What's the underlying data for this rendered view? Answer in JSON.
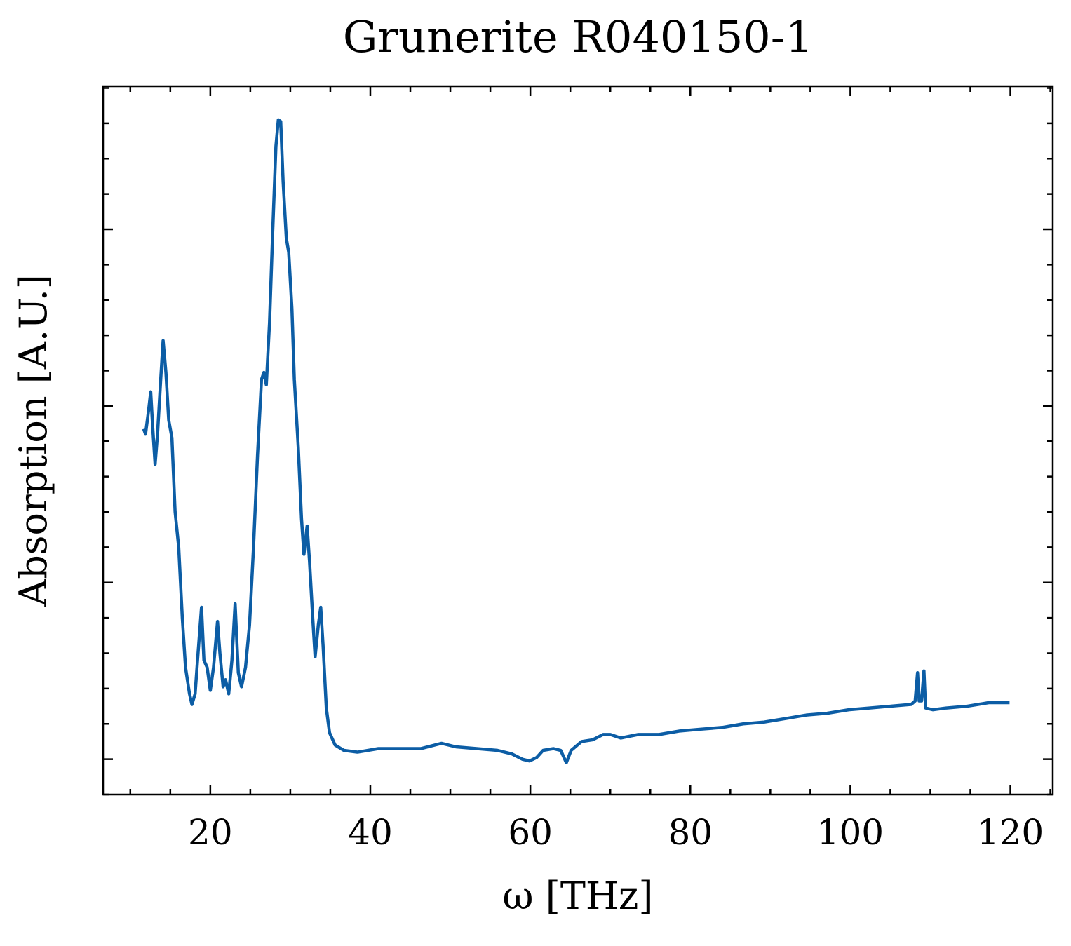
{
  "chart_data": {
    "type": "line",
    "title": "Grunerite R040150-1",
    "x_label": "ω [THz]",
    "y_label": "Absorption [A.U.]",
    "xlim": [
      6.6,
      125.3
    ],
    "ylim": [
      -0.2,
      3.81
    ],
    "xticks": [
      20,
      40,
      60,
      80,
      100,
      120
    ],
    "yticks": [
      {
        "value": 0,
        "label": ""
      },
      {
        "value": 1,
        "label": ""
      },
      {
        "value": 2,
        "label": ""
      },
      {
        "value": 3,
        "label": ""
      }
    ],
    "x": [
      11.67,
      11.9,
      12.3,
      12.55,
      12.8,
      13.1,
      13.4,
      13.8,
      14.1,
      14.45,
      14.8,
      15.2,
      15.6,
      16.05,
      16.5,
      16.9,
      17.4,
      17.7,
      18.1,
      18.4,
      18.9,
      19.2,
      19.6,
      20.0,
      20.4,
      20.9,
      21.2,
      21.6,
      21.9,
      22.3,
      22.7,
      23.1,
      23.5,
      23.9,
      24.4,
      24.9,
      25.4,
      25.9,
      26.4,
      26.7,
      27.0,
      27.4,
      27.8,
      28.2,
      28.5,
      28.8,
      29.1,
      29.5,
      29.8,
      30.2,
      30.5,
      31.0,
      31.4,
      31.7,
      32.1,
      32.4,
      32.8,
      33.1,
      33.5,
      33.8,
      34.1,
      34.5,
      34.9,
      35.6,
      36.7,
      38.4,
      41.0,
      43.7,
      46.3,
      48.9,
      50.7,
      53.3,
      55.9,
      57.7,
      59.0,
      59.9,
      60.8,
      61.6,
      62.9,
      63.8,
      64.5,
      65.1,
      66.4,
      67.8,
      69.1,
      70.0,
      71.3,
      73.5,
      76.1,
      78.7,
      81.3,
      84.0,
      86.6,
      89.2,
      91.9,
      94.5,
      97.1,
      99.8,
      102.4,
      105.0,
      107.6,
      108.1,
      108.4,
      108.6,
      108.9,
      109.2,
      109.4,
      110.3,
      112.0,
      114.6,
      117.3,
      119.9
    ],
    "series": [
      {
        "name": "Grunerite R040150-1",
        "color": "#0c5da5",
        "values": [
          1.87,
          1.84,
          1.98,
          2.08,
          1.88,
          1.67,
          1.84,
          2.15,
          2.37,
          2.19,
          1.92,
          1.82,
          1.4,
          1.2,
          0.8,
          0.52,
          0.37,
          0.31,
          0.37,
          0.56,
          0.86,
          0.56,
          0.52,
          0.39,
          0.52,
          0.78,
          0.6,
          0.41,
          0.45,
          0.37,
          0.56,
          0.88,
          0.49,
          0.41,
          0.52,
          0.76,
          1.2,
          1.72,
          2.15,
          2.19,
          2.12,
          2.47,
          2.99,
          3.47,
          3.62,
          3.61,
          3.27,
          2.95,
          2.87,
          2.55,
          2.15,
          1.76,
          1.36,
          1.16,
          1.32,
          1.12,
          0.8,
          0.58,
          0.76,
          0.86,
          0.64,
          0.29,
          0.15,
          0.08,
          0.05,
          0.04,
          0.06,
          0.06,
          0.06,
          0.09,
          0.07,
          0.06,
          0.05,
          0.03,
          0.0,
          -0.01,
          0.01,
          0.05,
          0.06,
          0.05,
          -0.02,
          0.05,
          0.1,
          0.11,
          0.14,
          0.14,
          0.12,
          0.14,
          0.14,
          0.16,
          0.17,
          0.18,
          0.2,
          0.21,
          0.23,
          0.25,
          0.26,
          0.28,
          0.29,
          0.3,
          0.31,
          0.33,
          0.49,
          0.33,
          0.33,
          0.5,
          0.29,
          0.28,
          0.29,
          0.3,
          0.32,
          0.32
        ]
      }
    ]
  }
}
